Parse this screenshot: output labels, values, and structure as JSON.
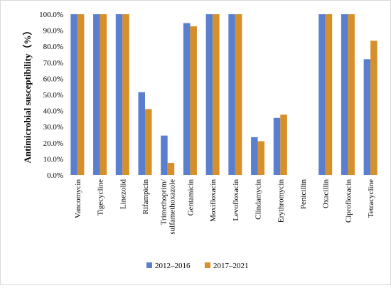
{
  "chart_data": {
    "type": "bar",
    "ylabel": "Antimicrobial susceptibility（%）",
    "ylim": [
      0,
      100
    ],
    "ytick_step": 10,
    "ytick_labels": [
      "0.0%",
      "10.0%",
      "20.0%",
      "30.0%",
      "40.0%",
      "50.0%",
      "60.0%",
      "70.0%",
      "80.0%",
      "90.0%",
      "100.0%"
    ],
    "categories": [
      "Vancomycin",
      "Tigecycline",
      "Linezolid",
      "Rifampicin",
      "Trimethoprim/ sulfamethoxazole",
      "Gentamicin",
      "Moxifloxacin",
      "Levofloxacin",
      "Clindamycin",
      "Erythromycin",
      "Penicillin",
      "Oxacillin",
      "Ciprofloxacin",
      "Tetracycline"
    ],
    "series": [
      {
        "name": "2012–2016",
        "color": "#5b7fcf",
        "values": [
          100,
          100,
          100,
          51.5,
          24.5,
          94.5,
          100,
          100,
          23.5,
          35.5,
          0,
          100,
          100,
          72
        ]
      },
      {
        "name": "2017–2021",
        "color": "#d78f2a",
        "values": [
          100,
          100,
          100,
          41,
          7.5,
          92.5,
          100,
          100,
          21,
          37.5,
          0,
          100,
          100,
          83.5
        ]
      }
    ],
    "legend_position": "bottom",
    "grid": false
  }
}
